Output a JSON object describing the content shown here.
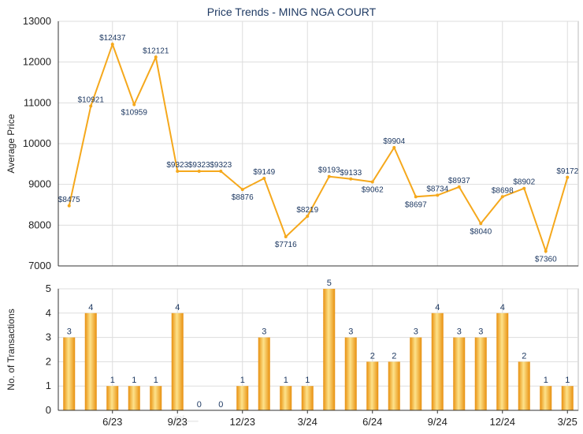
{
  "chart_data": [
    {
      "type": "line",
      "title": "Price Trends - MING NGA COURT",
      "ylabel": "Average Price",
      "ylim": [
        7000,
        13000
      ],
      "yticks": [
        7000,
        8000,
        9000,
        10000,
        11000,
        12000,
        13000
      ],
      "grid": true,
      "color": "#f5a81c",
      "points": [
        {
          "label": "$8475",
          "value": 8475
        },
        {
          "label": "$10921",
          "value": 10921
        },
        {
          "label": "$12437",
          "value": 12437
        },
        {
          "label": "$10959",
          "value": 10959
        },
        {
          "label": "$12121",
          "value": 12121
        },
        {
          "label": "$9323",
          "value": 9323
        },
        {
          "label": "$9323",
          "value": 9323
        },
        {
          "label": "$9323",
          "value": 9323
        },
        {
          "label": "$8876",
          "value": 8876
        },
        {
          "label": "$9149",
          "value": 9149
        },
        {
          "label": "$7716",
          "value": 7716
        },
        {
          "label": "$8219",
          "value": 8219
        },
        {
          "label": "$9193",
          "value": 9193
        },
        {
          "label": "$9133",
          "value": 9133
        },
        {
          "label": "$9062",
          "value": 9062
        },
        {
          "label": "$9904",
          "value": 9904
        },
        {
          "label": "$8697",
          "value": 8697
        },
        {
          "label": "$8734",
          "value": 8734
        },
        {
          "label": "$8937",
          "value": 8937
        },
        {
          "label": "$8040",
          "value": 8040
        },
        {
          "label": "$8698",
          "value": 8698
        },
        {
          "label": "$8902",
          "value": 8902
        },
        {
          "label": "$7360",
          "value": 7360
        },
        {
          "label": "$9172",
          "value": 9172
        }
      ]
    },
    {
      "type": "bar",
      "ylabel": "No. of Transactions",
      "ylim": [
        0,
        5
      ],
      "yticks": [
        0,
        1,
        2,
        3,
        4,
        5
      ],
      "grid": true,
      "color": "#f5a81c",
      "values": [
        3,
        4,
        1,
        1,
        1,
        4,
        0,
        0,
        1,
        3,
        1,
        1,
        5,
        3,
        2,
        2,
        3,
        4,
        3,
        3,
        4,
        2,
        1,
        1
      ],
      "xtick_labels": [
        {
          "index": 2,
          "label": "6/23"
        },
        {
          "index": 5,
          "label": "9/23"
        },
        {
          "index": 8,
          "label": "12/23"
        },
        {
          "index": 11,
          "label": "3/24"
        },
        {
          "index": 14,
          "label": "6/24"
        },
        {
          "index": 17,
          "label": "9/24"
        },
        {
          "index": 20,
          "label": "12/24"
        },
        {
          "index": 23,
          "label": "3/25"
        }
      ]
    }
  ]
}
